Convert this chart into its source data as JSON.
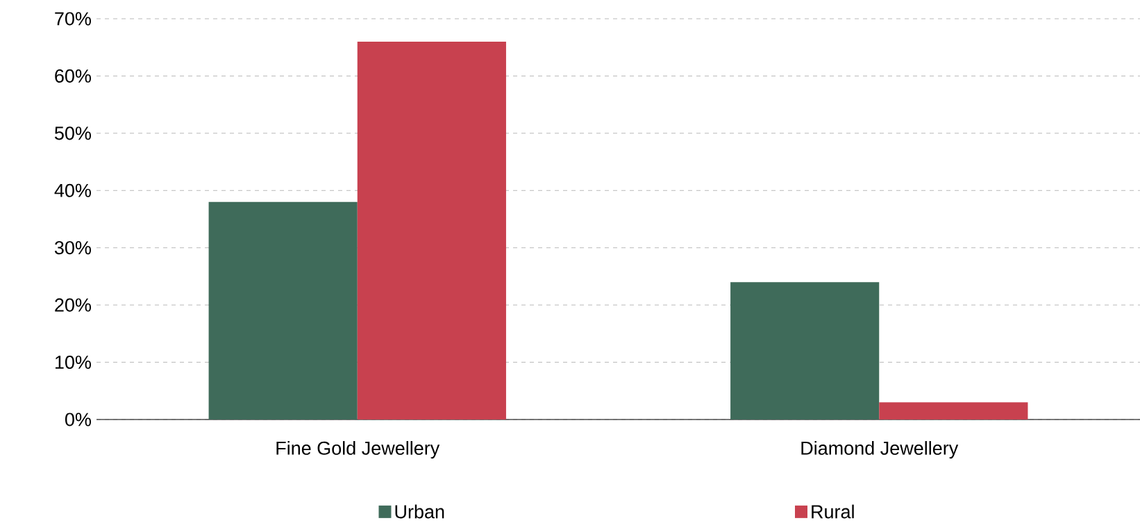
{
  "chart_data": {
    "type": "bar",
    "categories": [
      "Fine Gold Jewellery",
      "Diamond Jewellery"
    ],
    "series": [
      {
        "name": "Urban",
        "color": "#3f6b5a",
        "values": [
          38,
          24
        ]
      },
      {
        "name": "Rural",
        "color": "#c8414f",
        "values": [
          66,
          3
        ]
      }
    ],
    "ylim": [
      0,
      70
    ],
    "yticks": [
      {
        "value": 0,
        "label": "0%"
      },
      {
        "value": 10,
        "label": "10%"
      },
      {
        "value": 20,
        "label": "20%"
      },
      {
        "value": 30,
        "label": "30%"
      },
      {
        "value": 40,
        "label": "40%"
      },
      {
        "value": 50,
        "label": "50%"
      },
      {
        "value": 60,
        "label": "60%"
      },
      {
        "value": 70,
        "label": "70%"
      }
    ],
    "grid": "y",
    "legend": "bottom"
  }
}
